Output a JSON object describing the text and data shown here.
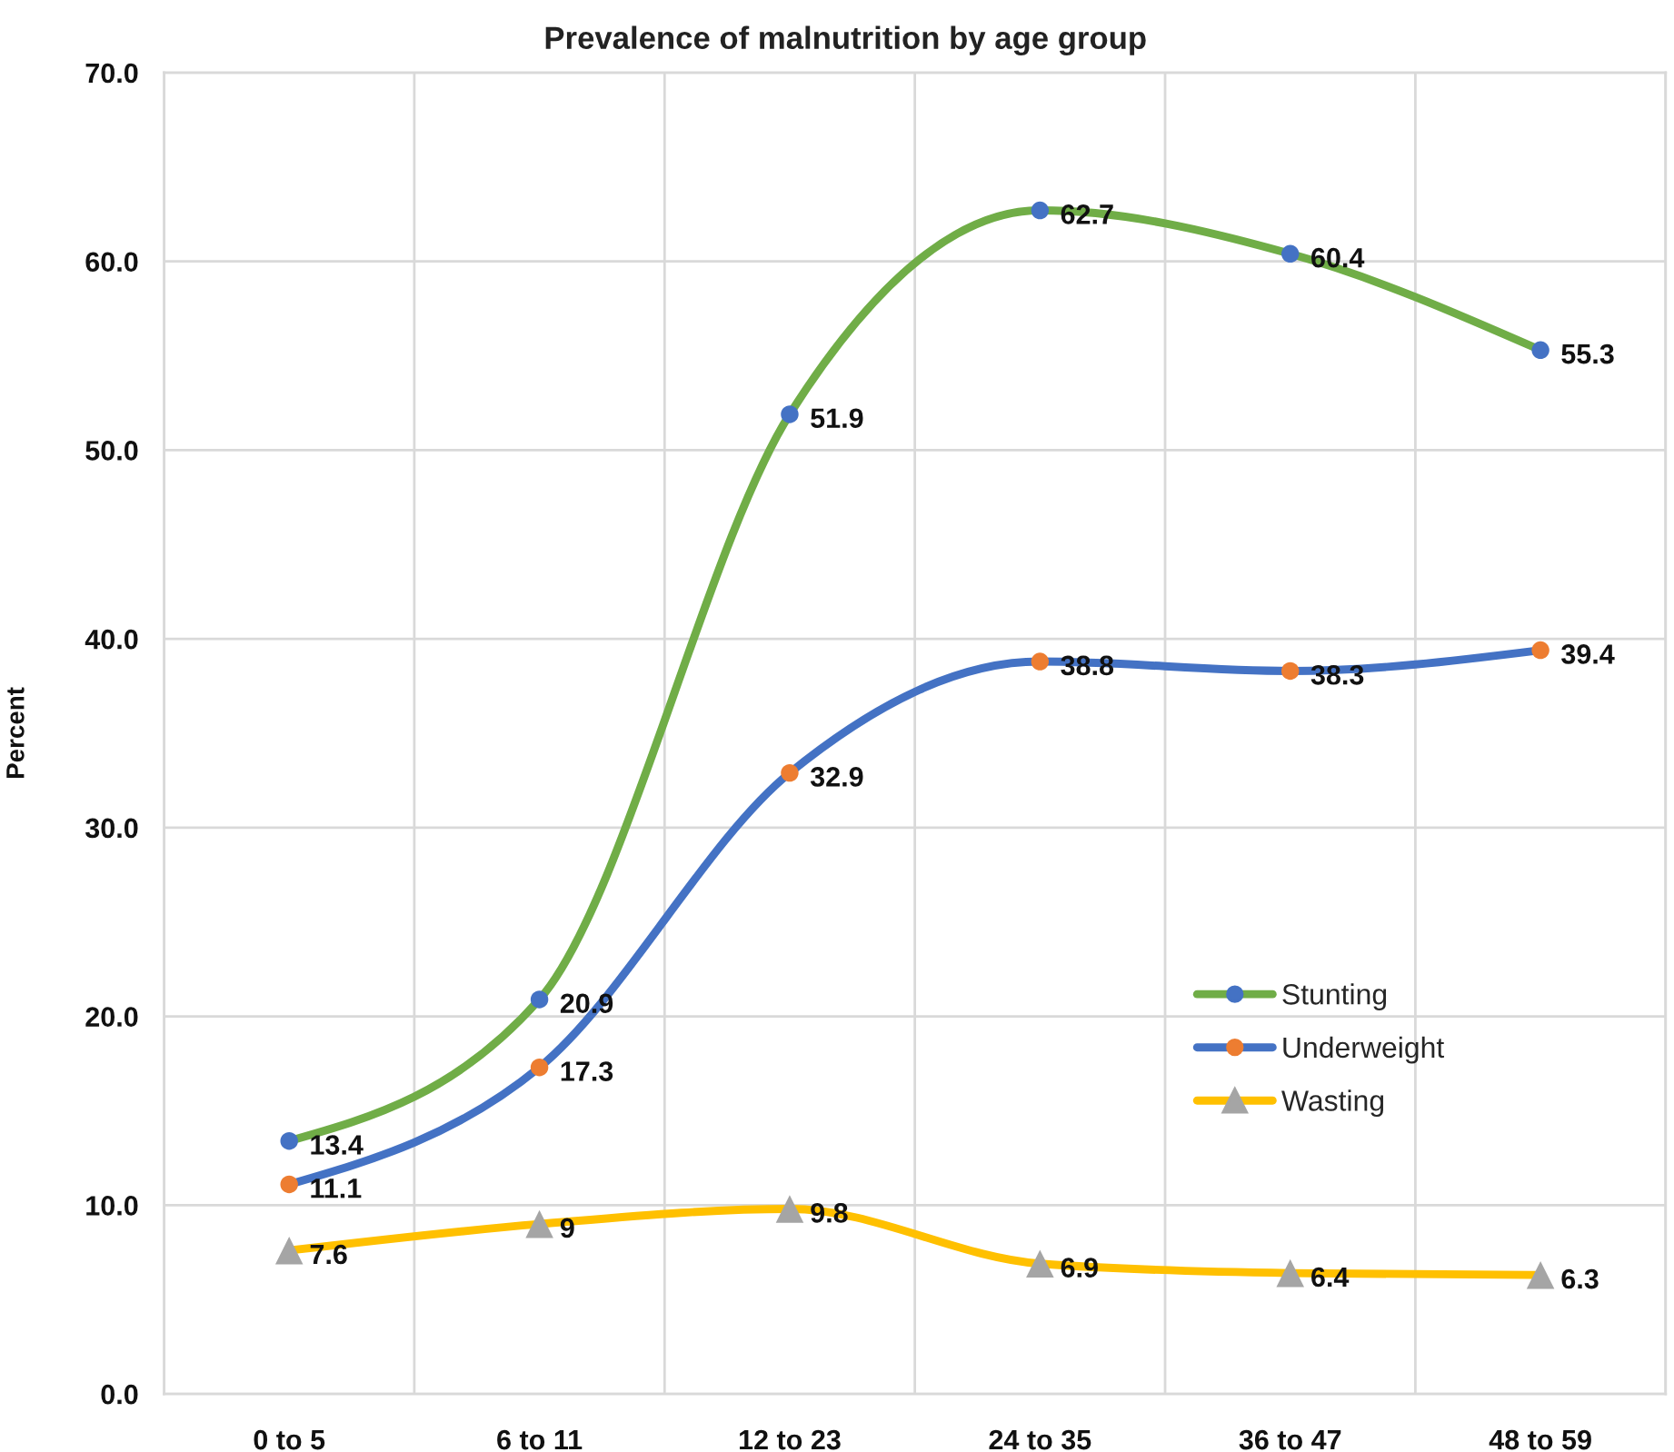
{
  "chart_data": {
    "type": "line",
    "title": "Prevalence of malnutrition by age group",
    "ylabel": "Percent",
    "categories": [
      "0 to 5",
      "6 to 11",
      "12 to 23",
      "24 to 35",
      "36 to 47",
      "48 to 59"
    ],
    "series": [
      {
        "name": "Stunting",
        "color": "#70ad47",
        "colors": [
          "#4472c4",
          "#4472c4",
          "#4472c4",
          "#4472c4",
          "#4472c4",
          "#4472c4"
        ],
        "marker": "circle",
        "values": [
          13.4,
          20.9,
          51.9,
          62.7,
          60.4,
          55.3
        ]
      },
      {
        "name": "Underweight",
        "color": "#4472c4",
        "colors": [
          "#ed7d31",
          "#ed7d31",
          "#ed7d31",
          "#ed7d31",
          "#ed7d31",
          "#ed7d31"
        ],
        "marker": "circle",
        "values": [
          11.1,
          17.3,
          32.9,
          38.8,
          38.3,
          39.4
        ]
      },
      {
        "name": "Wasting",
        "color": "#ffc000",
        "colors": [
          "#a5a5a5",
          "#a5a5a5",
          "#a5a5a5",
          "#a5a5a5",
          "#a5a5a5",
          "#a5a5a5"
        ],
        "marker": "triangle",
        "values": [
          7.6,
          9,
          9.8,
          6.9,
          6.4,
          6.3
        ]
      }
    ],
    "ylim": [
      0,
      70
    ],
    "yticks": [
      {
        "value": 0,
        "label": "0.0"
      },
      {
        "value": 10,
        "label": "10.0"
      },
      {
        "value": 20,
        "label": "20.0"
      },
      {
        "value": 30,
        "label": "30.0"
      },
      {
        "value": 40,
        "label": "40.0"
      },
      {
        "value": 50,
        "label": "50.0"
      },
      {
        "value": 60,
        "label": "60.0"
      },
      {
        "value": 70,
        "label": "70.0"
      }
    ],
    "grid": true,
    "legend": "lower right",
    "data_labels": true,
    "line_style": "solid"
  }
}
